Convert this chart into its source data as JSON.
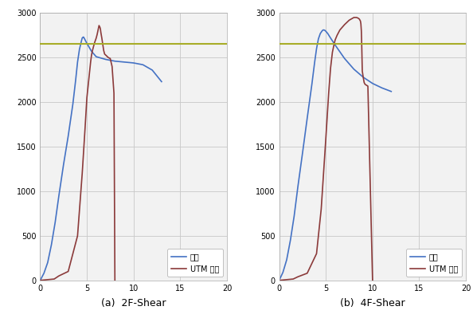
{
  "hline_y": 2650,
  "hline_color": "#a8ad28",
  "xlim": [
    0,
    20
  ],
  "ylim": [
    0,
    3000
  ],
  "xticks": [
    0,
    5,
    10,
    15,
    20
  ],
  "yticks": [
    0,
    500,
    1000,
    1500,
    2000,
    2500,
    3000
  ],
  "grid_color": "#c8c8c8",
  "grid_linewidth": 0.6,
  "bg_color": "#f2f2f2",
  "blue_color": "#4472c4",
  "red_color": "#8b3a3a",
  "legend_labels": [
    "해석",
    "UTM 로거"
  ],
  "subplot_a_label": "(a)  2F-Shear",
  "subplot_b_label": "(b)  4F-Shear",
  "a_blue_x": [
    0,
    0.4,
    0.8,
    1.2,
    1.6,
    2.0,
    2.5,
    3.0,
    3.5,
    3.8,
    4.0,
    4.2,
    4.4,
    4.5,
    4.6,
    4.65,
    4.7,
    4.8,
    5.0,
    5.5,
    6.0,
    7.0,
    8.0,
    9.0,
    10.0,
    11.0,
    12.0,
    13.0
  ],
  "a_blue_y": [
    0,
    80,
    200,
    400,
    650,
    950,
    1300,
    1620,
    1980,
    2250,
    2450,
    2590,
    2680,
    2720,
    2730,
    2730,
    2720,
    2700,
    2660,
    2570,
    2510,
    2480,
    2460,
    2450,
    2440,
    2420,
    2360,
    2230
  ],
  "a_red_x": [
    0,
    0.5,
    1.0,
    1.5,
    2.0,
    3.0,
    4.0,
    4.5,
    4.8,
    5.0,
    5.1,
    5.2,
    5.3,
    5.4,
    5.5,
    5.6,
    5.7,
    5.8,
    5.9,
    6.0,
    6.1,
    6.2,
    6.3,
    6.4,
    6.45,
    6.5,
    6.55,
    6.6,
    6.7,
    6.8,
    6.9,
    7.0,
    7.1,
    7.2,
    7.3,
    7.5,
    7.7,
    7.9,
    8.0
  ],
  "a_red_y": [
    0,
    5,
    10,
    15,
    50,
    100,
    500,
    1200,
    1700,
    2050,
    2150,
    2250,
    2350,
    2450,
    2530,
    2580,
    2620,
    2660,
    2690,
    2720,
    2760,
    2810,
    2860,
    2840,
    2820,
    2780,
    2750,
    2720,
    2650,
    2580,
    2540,
    2530,
    2520,
    2510,
    2500,
    2490,
    2400,
    2100,
    0
  ],
  "b_blue_x": [
    0,
    0.4,
    0.8,
    1.2,
    1.6,
    2.0,
    2.5,
    3.0,
    3.5,
    3.8,
    4.0,
    4.2,
    4.4,
    4.6,
    4.7,
    4.8,
    4.9,
    5.0,
    5.2,
    5.5,
    6.0,
    7.0,
    8.0,
    9.0,
    10.0,
    11.0,
    12.0
  ],
  "b_blue_y": [
    0,
    90,
    230,
    450,
    720,
    1050,
    1430,
    1820,
    2200,
    2450,
    2600,
    2710,
    2770,
    2800,
    2810,
    2810,
    2805,
    2795,
    2770,
    2720,
    2640,
    2490,
    2370,
    2280,
    2210,
    2160,
    2120
  ],
  "b_red_x": [
    0,
    0.5,
    1.0,
    1.5,
    2.0,
    3.0,
    4.0,
    4.5,
    5.0,
    5.3,
    5.5,
    5.7,
    5.9,
    6.0,
    6.2,
    6.5,
    7.0,
    7.5,
    8.0,
    8.3,
    8.5,
    8.6,
    8.7,
    8.75,
    8.8,
    8.85,
    8.9,
    9.0,
    9.1,
    9.2,
    9.5,
    10.0
  ],
  "b_red_y": [
    0,
    5,
    10,
    15,
    40,
    80,
    300,
    800,
    1600,
    2100,
    2380,
    2560,
    2660,
    2700,
    2750,
    2810,
    2870,
    2920,
    2950,
    2950,
    2940,
    2930,
    2910,
    2880,
    2800,
    2600,
    2350,
    2280,
    2220,
    2200,
    2180,
    0
  ]
}
